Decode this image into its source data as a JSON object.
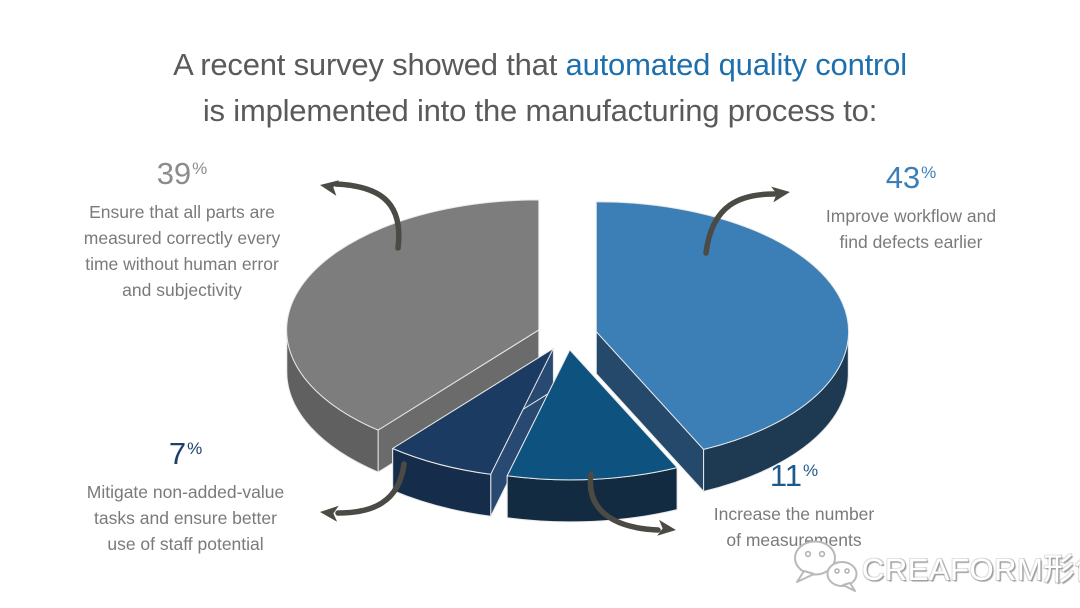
{
  "title": {
    "prefix": "A recent survey showed that ",
    "highlight": "automated quality control",
    "line2": "is implemented into the manufacturing process to:",
    "color_main": "#5A5A5A",
    "color_highlight": "#1E6FAE"
  },
  "chart_data": {
    "type": "pie",
    "style": "3d-exploded",
    "title": "A recent survey showed that automated quality control is implemented into the manufacturing process to:",
    "start_angle_deg": 0,
    "direction": "clockwise",
    "legend_position": "callouts-around-pie",
    "slices": [
      {
        "value": 43,
        "display": "43%",
        "label": "Improve workflow and find defects earlier",
        "color_top": "#3C7FB7",
        "color_rim": "#1D3A52",
        "color_cut": "#25496B"
      },
      {
        "value": 11,
        "display": "11%",
        "label": "Increase the number of measurements",
        "color_top": "#0E5280",
        "color_rim": "#122B40",
        "color_cut": "#173C5C"
      },
      {
        "value": 7,
        "display": "7%",
        "label": "Mitigate non-added-value tasks and ensure better use of staff potential",
        "color_top": "#1C3B63",
        "color_rim": "#152C4A",
        "color_cut": "#284A72"
      },
      {
        "value": 39,
        "display": "39%",
        "label": "Ensure that all parts are measured correctly every time without human error and subjectivity",
        "color_top": "#7D7D7D",
        "color_rim": "#606060",
        "color_cut": "#6B6B6B"
      }
    ]
  },
  "callouts": {
    "s39": {
      "value": "39",
      "unit": "%",
      "color": "#8C8C8C",
      "lines": [
        "Ensure that all parts are",
        "measured correctly every",
        "time without human error",
        "and subjectivity"
      ]
    },
    "s43": {
      "value": "43",
      "unit": "%",
      "color": "#3C7FB7",
      "lines": [
        "Improve workflow and",
        "find defects earlier"
      ]
    },
    "s7": {
      "value": "7",
      "unit": "%",
      "color": "#1F3E6E",
      "lines": [
        "Mitigate non-added-value",
        "tasks and ensure better",
        "use of staff potential"
      ]
    },
    "s11": {
      "value": "11",
      "unit": "%",
      "color": "#1D5A8C",
      "lines": [
        "Increase the number",
        "of measurements"
      ]
    }
  },
  "watermark": {
    "text": "CREAFORM形创",
    "icon": "wechat-icon"
  },
  "colors": {
    "arrow": "#4B4A44",
    "background": "#FFFFFF",
    "edge_seam": "#E8E8E8"
  }
}
